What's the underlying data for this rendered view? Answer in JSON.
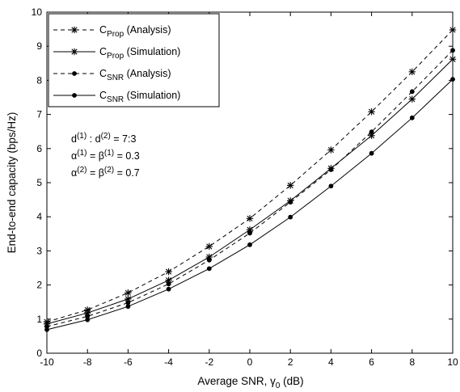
{
  "chart_data": {
    "type": "line",
    "xlabel": "Average SNR, γ",
    "xlabel_sub": "0",
    "xlabel_tail": " (dB)",
    "ylabel": "End-to-end capacity (bps/Hz)",
    "xlim": [
      -10,
      10
    ],
    "ylim": [
      0,
      10
    ],
    "x_ticks": [
      -10,
      -8,
      -6,
      -4,
      -2,
      0,
      2,
      4,
      6,
      8,
      10
    ],
    "y_ticks": [
      0,
      1,
      2,
      3,
      4,
      5,
      6,
      7,
      8,
      9,
      10
    ],
    "grid": false,
    "legend_position": "top-left",
    "x": [
      -10,
      -8,
      -6,
      -4,
      -2,
      0,
      2,
      4,
      6,
      8,
      10
    ],
    "series": [
      {
        "name_main": "C",
        "name_sub": "Prop",
        "name_tail": " (Analysis)",
        "line": "dashed",
        "marker": "star",
        "values": [
          0.92,
          1.27,
          1.77,
          2.39,
          3.13,
          3.95,
          4.92,
          5.96,
          7.08,
          8.25,
          9.48
        ]
      },
      {
        "name_main": "C",
        "name_sub": "Prop",
        "name_tail": " (Simulation)",
        "line": "solid",
        "marker": "star",
        "values": [
          0.86,
          1.18,
          1.59,
          2.14,
          2.82,
          3.62,
          4.47,
          5.42,
          6.38,
          7.45,
          8.62
        ]
      },
      {
        "name_main": "C",
        "name_sub": "SNR",
        "name_tail": " (Analysis)",
        "line": "dashed",
        "marker": "dot",
        "values": [
          0.78,
          1.08,
          1.48,
          2.03,
          2.73,
          3.52,
          4.43,
          5.38,
          6.49,
          7.67,
          8.88
        ]
      },
      {
        "name_main": "C",
        "name_sub": "SNR",
        "name_tail": " (Simulation)",
        "line": "solid",
        "marker": "dot",
        "values": [
          0.69,
          0.98,
          1.37,
          1.88,
          2.48,
          3.18,
          3.99,
          4.9,
          5.86,
          6.9,
          8.03
        ]
      }
    ],
    "annotations": [
      {
        "parts": [
          [
            "d",
            ""
          ],
          [
            "(1)",
            "sup"
          ],
          [
            " : d",
            ""
          ],
          [
            "(2)",
            "sup"
          ],
          [
            " = 7:3",
            ""
          ]
        ]
      },
      {
        "parts": [
          [
            "α",
            ""
          ],
          [
            "(1)",
            "sup"
          ],
          [
            " = β",
            ""
          ],
          [
            "(1)",
            "sup"
          ],
          [
            " = 0.3",
            ""
          ]
        ]
      },
      {
        "parts": [
          [
            "α",
            ""
          ],
          [
            "(2)",
            "sup"
          ],
          [
            " = β",
            ""
          ],
          [
            "(2)",
            "sup"
          ],
          [
            " = 0.7",
            ""
          ]
        ]
      }
    ]
  }
}
